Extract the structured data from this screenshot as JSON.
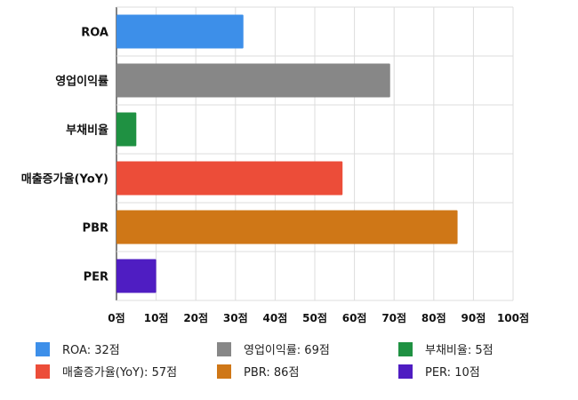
{
  "chart_data": {
    "type": "bar",
    "orientation": "horizontal",
    "categories": [
      "ROA",
      "영업이익률",
      "부채비율",
      "매출증가율(YoY)",
      "PBR",
      "PER"
    ],
    "values": [
      32,
      69,
      5,
      57,
      86,
      10
    ],
    "colors": [
      "#3d8fe9",
      "#878787",
      "#1f9142",
      "#ec4d39",
      "#cf7717",
      "#4f1dc2"
    ],
    "xlim": [
      0,
      100
    ],
    "xticks": [
      0,
      10,
      20,
      30,
      40,
      50,
      60,
      70,
      80,
      90,
      100
    ],
    "tick_labels": [
      "0점",
      "10점",
      "20점",
      "30점",
      "40점",
      "50점",
      "60점",
      "70점",
      "80점",
      "90점",
      "100점"
    ],
    "grid": true,
    "legend": {
      "position": "bottom",
      "items": [
        {
          "label": "ROA: 32점",
          "color": "#3d8fe9"
        },
        {
          "label": "영업이익률: 69점",
          "color": "#878787"
        },
        {
          "label": "부채비율: 5점",
          "color": "#1f9142"
        },
        {
          "label": "매출증가율(YoY): 57점",
          "color": "#ec4d39"
        },
        {
          "label": "PBR: 86점",
          "color": "#cf7717"
        },
        {
          "label": "PER: 10점",
          "color": "#4f1dc2"
        }
      ]
    }
  }
}
